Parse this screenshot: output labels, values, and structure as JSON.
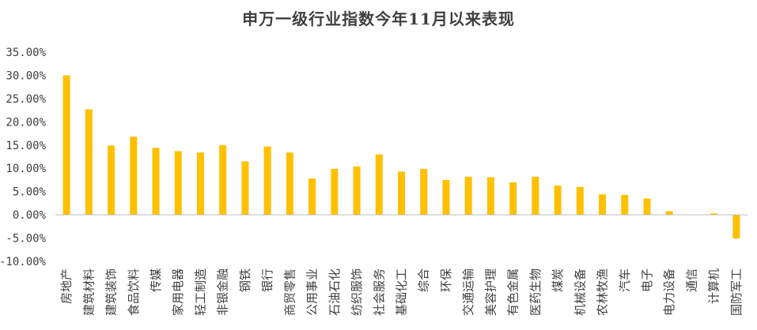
{
  "chart_data": {
    "type": "bar",
    "title": "申万一级行业指数今年11月以来表现",
    "xlabel": "",
    "ylabel": "",
    "ylim": [
      -0.1,
      0.35
    ],
    "yticks": [
      "35.00%",
      "30.00%",
      "25.00%",
      "20.00%",
      "15.00%",
      "10.00%",
      "5.00%",
      "0.00%",
      "-5.00%",
      "-10.00%"
    ],
    "ytick_values": [
      0.35,
      0.3,
      0.25,
      0.2,
      0.15,
      0.1,
      0.05,
      0.0,
      -0.05,
      -0.1
    ],
    "grid": false,
    "legend": "none",
    "bar_color": "#FFC000",
    "categories": [
      "房地产",
      "建筑材料",
      "建筑装饰",
      "食品饮料",
      "传媒",
      "家用电器",
      "轻工制造",
      "非银金融",
      "钢铁",
      "银行",
      "商贸零售",
      "公用事业",
      "石油石化",
      "纺织服饰",
      "社会服务",
      "基础化工",
      "综合",
      "环保",
      "交通运输",
      "美容护理",
      "有色金属",
      "医药生物",
      "煤炭",
      "机械设备",
      "农林牧渔",
      "汽车",
      "电子",
      "电力设备",
      "通信",
      "计算机",
      "国防军工"
    ],
    "values": [
      0.3,
      0.227,
      0.149,
      0.168,
      0.144,
      0.137,
      0.134,
      0.15,
      0.115,
      0.147,
      0.134,
      0.078,
      0.099,
      0.104,
      0.13,
      0.093,
      0.099,
      0.075,
      0.082,
      0.081,
      0.07,
      0.082,
      0.063,
      0.06,
      0.044,
      0.043,
      0.035,
      0.008,
      0.0,
      0.003,
      -0.051
    ]
  }
}
